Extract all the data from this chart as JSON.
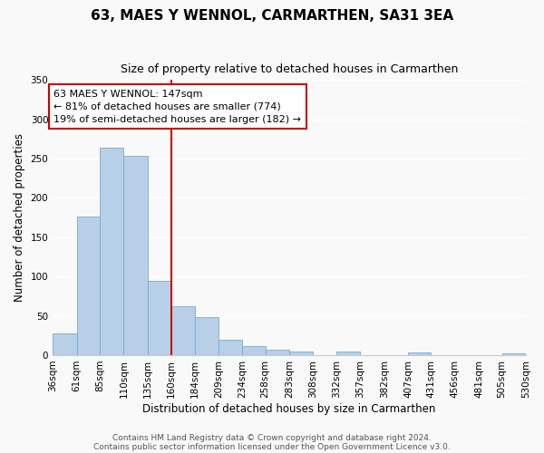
{
  "title": "63, MAES Y WENNOL, CARMARTHEN, SA31 3EA",
  "subtitle": "Size of property relative to detached houses in Carmarthen",
  "xlabel": "Distribution of detached houses by size in Carmarthen",
  "ylabel": "Number of detached properties",
  "footer_lines": [
    "Contains HM Land Registry data © Crown copyright and database right 2024.",
    "Contains public sector information licensed under the Open Government Licence v3.0."
  ],
  "bins": [
    36,
    61,
    85,
    110,
    135,
    160,
    184,
    209,
    234,
    258,
    283,
    308,
    332,
    357,
    382,
    407,
    431,
    456,
    481,
    505,
    530
  ],
  "bin_labels": [
    "36sqm",
    "61sqm",
    "85sqm",
    "110sqm",
    "135sqm",
    "160sqm",
    "184sqm",
    "209sqm",
    "234sqm",
    "258sqm",
    "283sqm",
    "308sqm",
    "332sqm",
    "357sqm",
    "382sqm",
    "407sqm",
    "431sqm",
    "456sqm",
    "481sqm",
    "505sqm",
    "530sqm"
  ],
  "counts": [
    28,
    176,
    264,
    254,
    95,
    62,
    48,
    20,
    11,
    7,
    4,
    0,
    4,
    0,
    0,
    3,
    0,
    0,
    0,
    2,
    0
  ],
  "bar_color": "#b8cfe8",
  "bar_edge_color": "#7aaad0",
  "vline_color": "#cc0000",
  "annotation_line1": "63 MAES Y WENNOL: 147sqm",
  "annotation_line2": "← 81% of detached houses are smaller (774)",
  "annotation_line3": "19% of semi-detached houses are larger (182) →",
  "annotation_box_color": "#ffffff",
  "annotation_box_edge": "#cc0000",
  "ylim": [
    0,
    350
  ],
  "yticks": [
    0,
    50,
    100,
    150,
    200,
    250,
    300,
    350
  ],
  "background_color": "#f9f9f9",
  "title_fontsize": 11,
  "subtitle_fontsize": 9,
  "axis_label_fontsize": 8.5,
  "tick_fontsize": 7.5,
  "annotation_fontsize": 8,
  "footer_fontsize": 6.5
}
